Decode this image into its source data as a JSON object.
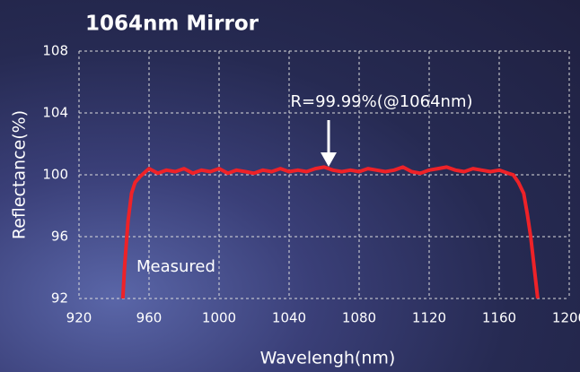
{
  "chart_data": {
    "type": "line",
    "title": "1064nm Mirror",
    "x_label": "Wavelengh(nm)",
    "y_label": "Reflectance(%)",
    "annotation": "R=99.99%(@1064nm)",
    "series_label": "Measured",
    "color": "#ee2228",
    "x": [
      945,
      946,
      948,
      950,
      952,
      955,
      958,
      960,
      965,
      970,
      975,
      980,
      985,
      990,
      995,
      1000,
      1005,
      1010,
      1015,
      1020,
      1025,
      1030,
      1035,
      1040,
      1045,
      1050,
      1055,
      1060,
      1065,
      1070,
      1075,
      1080,
      1085,
      1090,
      1095,
      1100,
      1105,
      1110,
      1115,
      1120,
      1125,
      1130,
      1135,
      1140,
      1145,
      1150,
      1155,
      1160,
      1165,
      1168,
      1171,
      1174,
      1176,
      1178,
      1180,
      1182
    ],
    "values": [
      92,
      94,
      97,
      98.8,
      99.5,
      99.9,
      100.2,
      100.4,
      100.1,
      100.3,
      100.2,
      100.4,
      100.1,
      100.3,
      100.2,
      100.4,
      100.1,
      100.3,
      100.2,
      100.1,
      100.3,
      100.2,
      100.4,
      100.2,
      100.3,
      100.2,
      100.4,
      100.5,
      100.3,
      100.2,
      100.3,
      100.2,
      100.4,
      100.3,
      100.2,
      100.3,
      100.5,
      100.2,
      100.1,
      100.3,
      100.4,
      100.5,
      100.3,
      100.2,
      100.4,
      100.3,
      100.2,
      100.3,
      100.1,
      100.0,
      99.5,
      98.8,
      97.5,
      96,
      94,
      92
    ],
    "xlim": [
      920,
      1200
    ],
    "xticks": [
      920,
      960,
      1000,
      1040,
      1080,
      1120,
      1160,
      1200
    ],
    "ylim": [
      92,
      108
    ],
    "yticks": [
      92,
      96,
      100,
      104,
      108
    ],
    "grid": true
  }
}
